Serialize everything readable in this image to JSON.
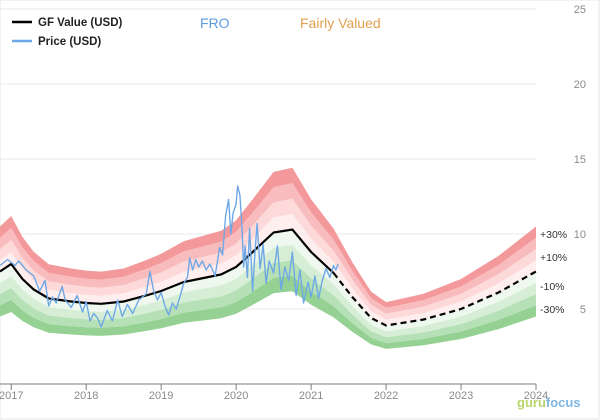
{
  "chart_data": {
    "type": "area",
    "title": "",
    "ticker": "FRO",
    "valuation_label": "Fairly Valued",
    "x_tick_labels": [
      "2017",
      "2018",
      "2019",
      "2020",
      "2021",
      "2022",
      "2023",
      "2024"
    ],
    "y_tick_labels": [
      "5",
      "10",
      "15",
      "20",
      "25"
    ],
    "ylim": [
      0,
      25
    ],
    "xlim": [
      2016.85,
      2024.0
    ],
    "y_axis_side": "right",
    "grid": "horizontal",
    "legend": {
      "placement": "top-left",
      "entries": [
        {
          "label": "GF Value (USD)",
          "color": "#000000"
        },
        {
          "label": "Price (USD)",
          "color": "#6ea8e6"
        }
      ]
    },
    "band_labels": [
      "+30%",
      "+10%",
      "-10%",
      "-30%"
    ],
    "band_offsets": [
      -0.4,
      -0.3,
      -0.2,
      -0.1,
      0,
      0.1,
      0.2,
      0.3,
      0.4
    ],
    "band_colors": {
      "upper": [
        "#ffeeee",
        "#fdd9da",
        "#f9bcbe",
        "#f4999b",
        "#ee7173"
      ],
      "lower": [
        "#eef8ee",
        "#d6eed6",
        "#b6e0b5",
        "#94d192",
        "#6dbf6b"
      ]
    },
    "gf_value": {
      "color": "#000000",
      "historical": [
        [
          2016.85,
          7.5
        ],
        [
          2017.0,
          8.0
        ],
        [
          2017.15,
          7.0
        ],
        [
          2017.3,
          6.3
        ],
        [
          2017.5,
          5.7
        ],
        [
          2017.8,
          5.5
        ],
        [
          2018.0,
          5.4
        ],
        [
          2018.2,
          5.35
        ],
        [
          2018.5,
          5.5
        ],
        [
          2018.8,
          5.9
        ],
        [
          2019.0,
          6.2
        ],
        [
          2019.3,
          6.8
        ],
        [
          2019.5,
          7.0
        ],
        [
          2019.8,
          7.3
        ],
        [
          2020.0,
          7.8
        ],
        [
          2020.2,
          8.7
        ],
        [
          2020.5,
          10.1
        ],
        [
          2020.75,
          10.3
        ],
        [
          2021.0,
          8.8
        ],
        [
          2021.3,
          7.4
        ]
      ],
      "projected": [
        [
          2021.3,
          7.4
        ],
        [
          2021.55,
          5.8
        ],
        [
          2021.8,
          4.4
        ],
        [
          2022.0,
          3.9
        ],
        [
          2022.5,
          4.3
        ],
        [
          2023.0,
          5.0
        ],
        [
          2023.5,
          6.1
        ],
        [
          2024.0,
          7.5
        ]
      ]
    },
    "price": {
      "color": "#6ea8e6",
      "points": [
        [
          2016.85,
          7.9
        ],
        [
          2016.95,
          8.3
        ],
        [
          2017.05,
          7.9
        ],
        [
          2017.1,
          8.2
        ],
        [
          2017.2,
          7.6
        ],
        [
          2017.3,
          7.2
        ],
        [
          2017.38,
          6.2
        ],
        [
          2017.45,
          6.9
        ],
        [
          2017.5,
          5.2
        ],
        [
          2017.55,
          5.8
        ],
        [
          2017.6,
          5.4
        ],
        [
          2017.68,
          6.5
        ],
        [
          2017.72,
          5.6
        ],
        [
          2017.8,
          5.1
        ],
        [
          2017.88,
          5.9
        ],
        [
          2017.95,
          4.8
        ],
        [
          2018.0,
          5.5
        ],
        [
          2018.05,
          4.2
        ],
        [
          2018.1,
          4.7
        ],
        [
          2018.15,
          4.4
        ],
        [
          2018.2,
          3.8
        ],
        [
          2018.28,
          4.9
        ],
        [
          2018.35,
          4.2
        ],
        [
          2018.42,
          5.6
        ],
        [
          2018.48,
          4.5
        ],
        [
          2018.55,
          5.3
        ],
        [
          2018.62,
          4.7
        ],
        [
          2018.7,
          5.6
        ],
        [
          2018.8,
          6.0
        ],
        [
          2018.85,
          7.5
        ],
        [
          2018.9,
          6.2
        ],
        [
          2018.95,
          5.6
        ],
        [
          2019.0,
          6.1
        ],
        [
          2019.05,
          5.2
        ],
        [
          2019.1,
          4.6
        ],
        [
          2019.15,
          5.4
        ],
        [
          2019.2,
          5.0
        ],
        [
          2019.25,
          5.8
        ],
        [
          2019.3,
          6.7
        ],
        [
          2019.35,
          7.1
        ],
        [
          2019.38,
          8.4
        ],
        [
          2019.42,
          7.6
        ],
        [
          2019.46,
          8.3
        ],
        [
          2019.5,
          7.8
        ],
        [
          2019.55,
          8.2
        ],
        [
          2019.6,
          7.6
        ],
        [
          2019.65,
          8.0
        ],
        [
          2019.72,
          7.2
        ],
        [
          2019.78,
          9.1
        ],
        [
          2019.82,
          8.6
        ],
        [
          2019.86,
          11.2
        ],
        [
          2019.9,
          12.3
        ],
        [
          2019.93,
          10.0
        ],
        [
          2019.96,
          11.4
        ],
        [
          2020.0,
          12.0
        ],
        [
          2020.02,
          13.2
        ],
        [
          2020.05,
          12.6
        ],
        [
          2020.08,
          10.3
        ],
        [
          2020.1,
          7.8
        ],
        [
          2020.12,
          9.2
        ],
        [
          2020.15,
          7.1
        ],
        [
          2020.18,
          10.4
        ],
        [
          2020.22,
          6.2
        ],
        [
          2020.25,
          8.7
        ],
        [
          2020.28,
          10.7
        ],
        [
          2020.32,
          7.7
        ],
        [
          2020.36,
          9.3
        ],
        [
          2020.4,
          6.7
        ],
        [
          2020.44,
          8.2
        ],
        [
          2020.5,
          7.4
        ],
        [
          2020.55,
          9.2
        ],
        [
          2020.6,
          6.3
        ],
        [
          2020.65,
          7.8
        ],
        [
          2020.7,
          6.9
        ],
        [
          2020.75,
          8.8
        ],
        [
          2020.8,
          5.9
        ],
        [
          2020.85,
          7.6
        ],
        [
          2020.9,
          5.4
        ],
        [
          2020.96,
          6.8
        ],
        [
          2021.0,
          5.8
        ],
        [
          2021.05,
          7.2
        ],
        [
          2021.1,
          5.7
        ],
        [
          2021.15,
          6.9
        ],
        [
          2021.2,
          7.7
        ],
        [
          2021.25,
          7.1
        ],
        [
          2021.3,
          7.9
        ],
        [
          2021.33,
          7.6
        ],
        [
          2021.36,
          8.0
        ]
      ]
    }
  },
  "watermark": {
    "part1": "guru",
    "part2": "focus"
  }
}
